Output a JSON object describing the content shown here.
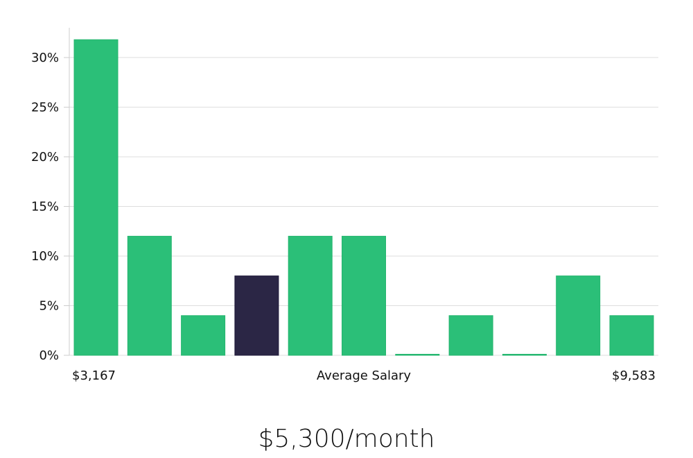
{
  "chart_data": {
    "type": "bar",
    "ylim": [
      0,
      33
    ],
    "yticks": [
      "0%",
      "5%",
      "10%",
      "15%",
      "20%",
      "25%",
      "30%"
    ],
    "ytick_values": [
      0,
      5,
      10,
      15,
      20,
      25,
      30
    ],
    "values": [
      31.8,
      12,
      4,
      8,
      12,
      12,
      0,
      4,
      0,
      8,
      4
    ],
    "highlight_index": 3,
    "x_labels": {
      "left": "$3,167",
      "center": "Average Salary",
      "right": "$9,583"
    },
    "grid": true,
    "colors": {
      "bar": "#2bbf78",
      "highlight": "#2b2645"
    }
  },
  "summary": {
    "salary": "$5,300/month"
  }
}
